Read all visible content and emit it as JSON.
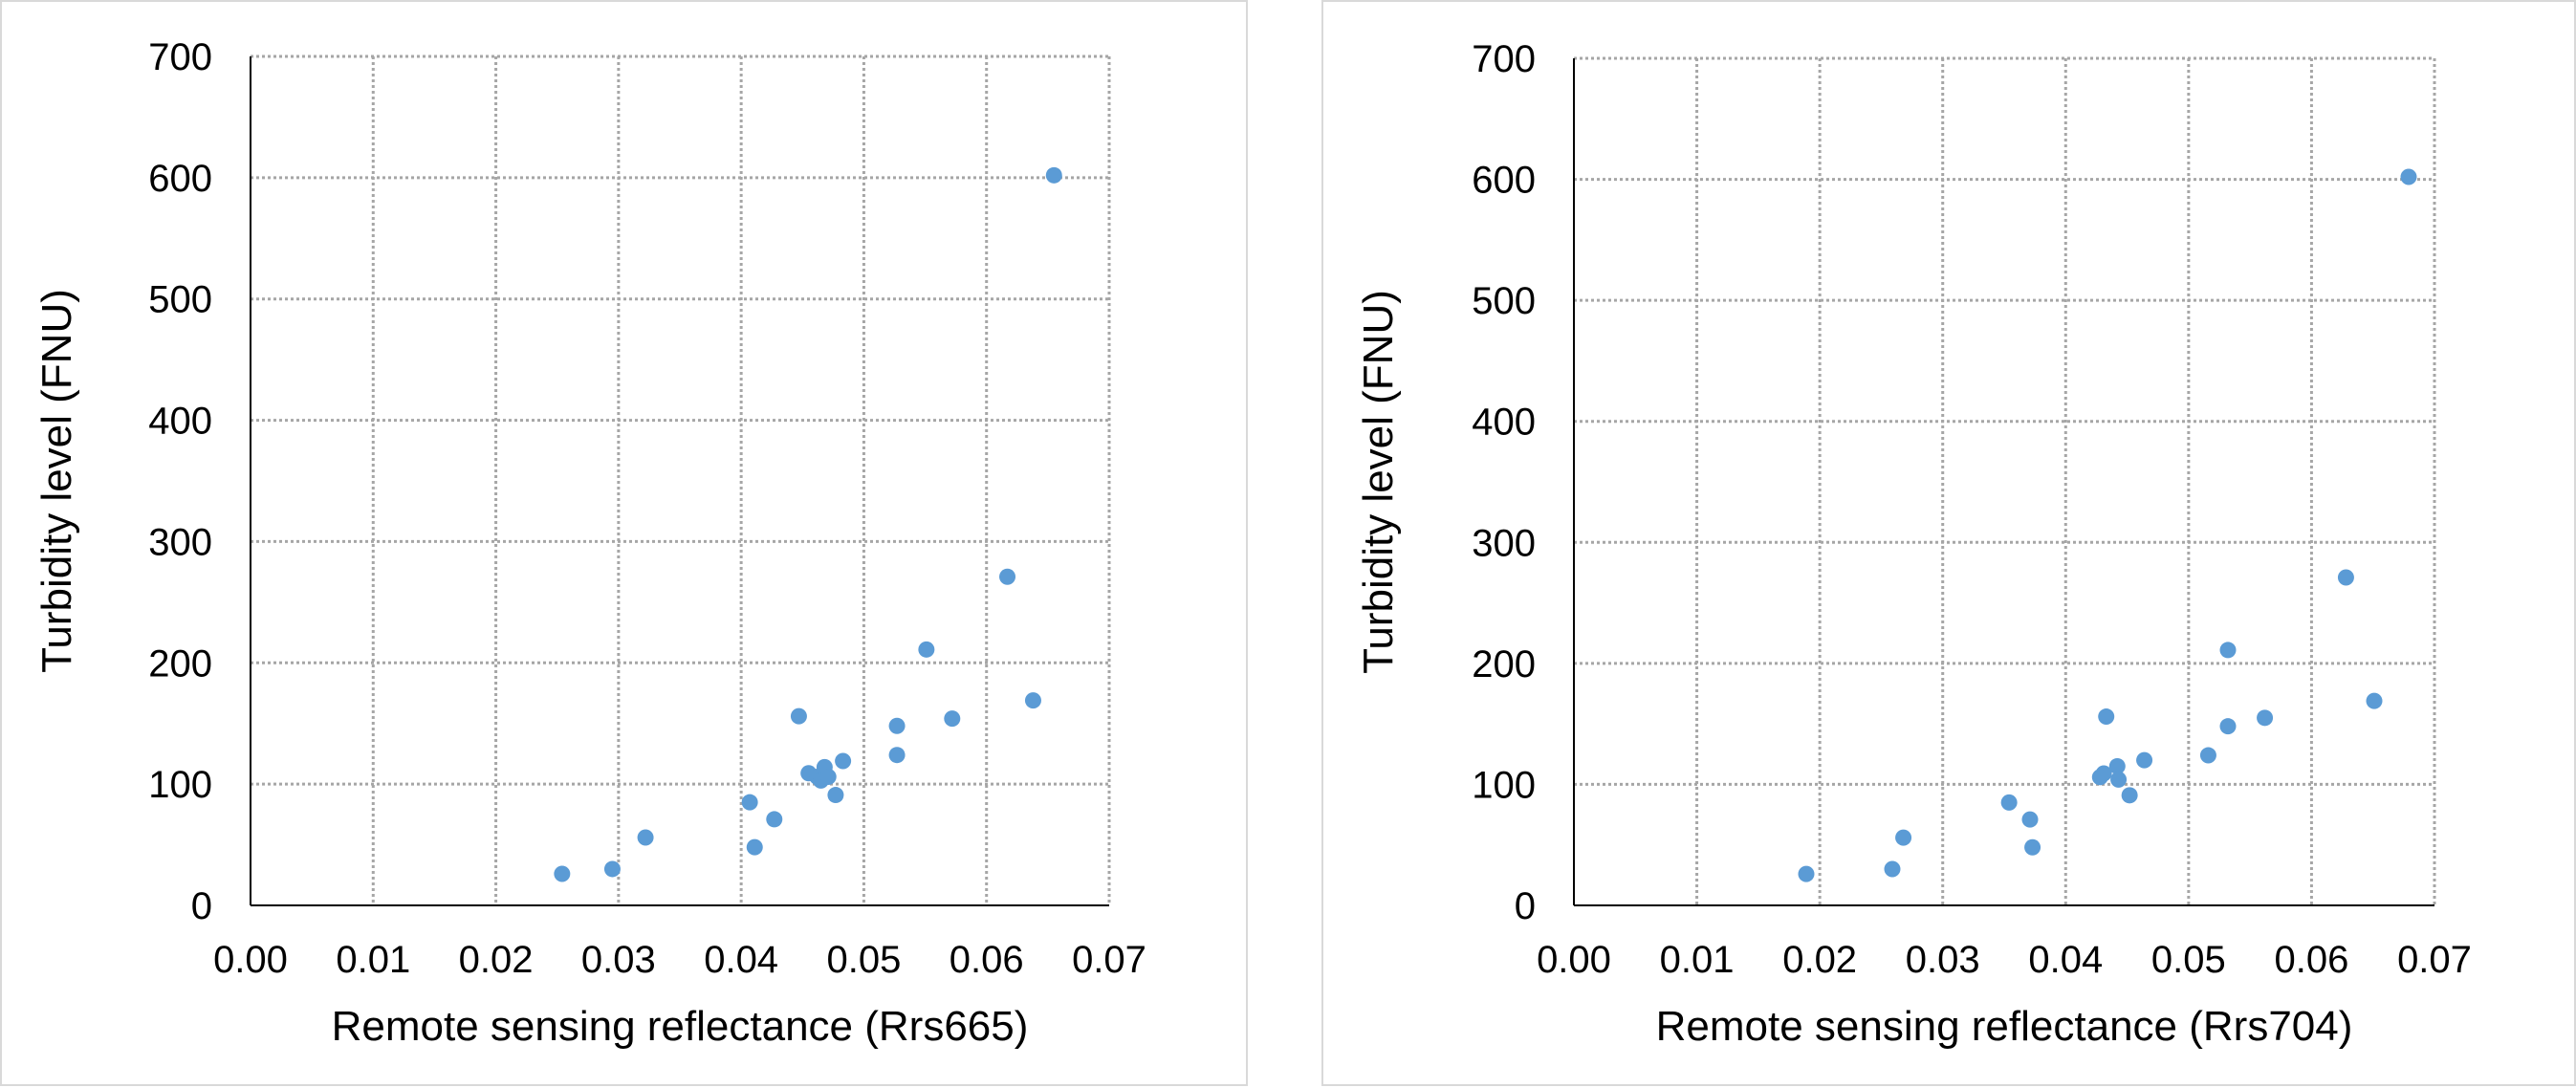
{
  "colors": {
    "marker": "#5b9bd5",
    "grid": "#a6a6a6",
    "axis": "#000000"
  },
  "chart_data": [
    {
      "type": "scatter",
      "xlabel": "Remote sensing reflectance (Rrs665)",
      "ylabel": "Turbidity level (FNU)",
      "xlim": [
        0,
        0.07
      ],
      "ylim": [
        0,
        700
      ],
      "x_ticks": [
        "0.00",
        "0.01",
        "0.02",
        "0.03",
        "0.04",
        "0.05",
        "0.06",
        "0.07"
      ],
      "y_ticks": [
        "0",
        "100",
        "200",
        "300",
        "400",
        "500",
        "600",
        "700"
      ],
      "grid": true,
      "series": [
        {
          "points": [
            [
              0.0254,
              26
            ],
            [
              0.0295,
              30
            ],
            [
              0.0322,
              56
            ],
            [
              0.0407,
              85
            ],
            [
              0.0411,
              48
            ],
            [
              0.0427,
              71
            ],
            [
              0.0447,
              156
            ],
            [
              0.0455,
              109
            ],
            [
              0.0462,
              106
            ],
            [
              0.0465,
              103
            ],
            [
              0.0468,
              114
            ],
            [
              0.0471,
              106
            ],
            [
              0.0477,
              91
            ],
            [
              0.0483,
              119
            ],
            [
              0.0527,
              148
            ],
            [
              0.0527,
              124
            ],
            [
              0.0551,
              211
            ],
            [
              0.0572,
              154
            ],
            [
              0.0617,
              271
            ],
            [
              0.0638,
              169
            ],
            [
              0.0655,
              602
            ]
          ]
        }
      ]
    },
    {
      "type": "scatter",
      "xlabel": "Remote sensing reflectance (Rrs704)",
      "ylabel": "Turbidity level (FNU)",
      "xlim": [
        0,
        0.07
      ],
      "ylim": [
        0,
        700
      ],
      "x_ticks": [
        "0.00",
        "0.01",
        "0.02",
        "0.03",
        "0.04",
        "0.05",
        "0.06",
        "0.07"
      ],
      "y_ticks": [
        "0",
        "100",
        "200",
        "300",
        "400",
        "500",
        "600",
        "700"
      ],
      "grid": true,
      "series": [
        {
          "points": [
            [
              0.0189,
              26
            ],
            [
              0.0259,
              30
            ],
            [
              0.0268,
              56
            ],
            [
              0.0354,
              85
            ],
            [
              0.0371,
              71
            ],
            [
              0.0373,
              48
            ],
            [
              0.0428,
              106
            ],
            [
              0.0431,
              109
            ],
            [
              0.0433,
              156
            ],
            [
              0.0442,
              115
            ],
            [
              0.0443,
              104
            ],
            [
              0.0452,
              91
            ],
            [
              0.0464,
              120
            ],
            [
              0.0516,
              124
            ],
            [
              0.0532,
              211
            ],
            [
              0.0532,
              148
            ],
            [
              0.0562,
              155
            ],
            [
              0.0628,
              271
            ],
            [
              0.0651,
              169
            ],
            [
              0.0679,
              602
            ]
          ]
        }
      ]
    }
  ]
}
